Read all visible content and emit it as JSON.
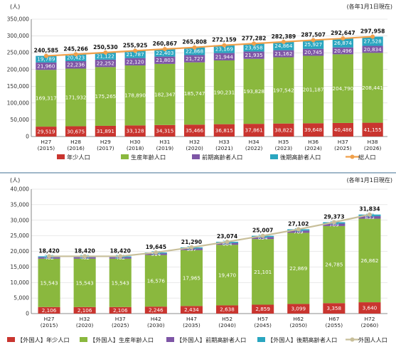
{
  "charts": [
    {
      "id": "top",
      "type": "bar",
      "stacked": true,
      "unit_label": "(人)",
      "note": "(各年1月1日現在)",
      "categories": [
        [
          "H27",
          "(2015)"
        ],
        [
          "H28",
          "(2016)"
        ],
        [
          "H29",
          "(2017)"
        ],
        [
          "H30",
          "(2018)"
        ],
        [
          "H31",
          "(2019)"
        ],
        [
          "H32",
          "(2020)"
        ],
        [
          "H33",
          "(2021)"
        ],
        [
          "H34",
          "(2022)"
        ],
        [
          "H35",
          "(2023)"
        ],
        [
          "H36",
          "(2024)"
        ],
        [
          "H37",
          "(2025)"
        ],
        [
          "H38",
          "(2026)"
        ]
      ],
      "series": [
        {
          "name": "年少人口",
          "color": "#c9352f",
          "label_color": "#ffffff",
          "values": [
            29519,
            30675,
            31891,
            33128,
            34315,
            35466,
            36815,
            37861,
            38822,
            39648,
            40486,
            41155
          ]
        },
        {
          "name": "生産年齢人口",
          "color": "#8ab83e",
          "label_color": "#ffffff",
          "values": [
            169317,
            171932,
            175265,
            178890,
            182347,
            185747,
            190231,
            193828,
            197542,
            201187,
            204790,
            208441
          ]
        },
        {
          "name": "前期高齢者人口",
          "color": "#7e56a6",
          "label_color": "#ffffff",
          "values": [
            21960,
            22236,
            22252,
            22120,
            21803,
            21727,
            21944,
            21935,
            21162,
            20745,
            20496,
            20834
          ]
        },
        {
          "name": "後期高齢者人口",
          "color": "#2aa6c0",
          "label_color": "#ffffff",
          "values": [
            19789,
            20423,
            21122,
            21787,
            22403,
            22868,
            23169,
            23658,
            24864,
            25927,
            26874,
            27528
          ]
        }
      ],
      "line": {
        "name": "総人口",
        "color": "#f0a04b",
        "values": [
          240585,
          245266,
          250530,
          255925,
          260867,
          265808,
          272159,
          277282,
          282389,
          287507,
          292647,
          297958
        ]
      },
      "ylim": [
        0,
        350000
      ],
      "yticks": [
        0,
        50000,
        100000,
        150000,
        200000,
        250000,
        300000,
        350000
      ],
      "ytick_labels": [
        "0",
        "50,000",
        "100,000",
        "150,000",
        "200,000",
        "250,000",
        "300,000",
        "350,000"
      ],
      "legend": [
        {
          "label": "年少人口",
          "color": "#c9352f",
          "kind": "box"
        },
        {
          "label": "生産年齢人口",
          "color": "#8ab83e",
          "kind": "box"
        },
        {
          "label": "前期高齢者人口",
          "color": "#7e56a6",
          "kind": "box"
        },
        {
          "label": "後期高齢者人口",
          "color": "#2aa6c0",
          "kind": "box"
        },
        {
          "label": "総人口",
          "color": "#f0a04b",
          "kind": "line"
        }
      ]
    },
    {
      "id": "bottom",
      "type": "bar",
      "stacked": true,
      "unit_label": "(人)",
      "note": "(各年1月1日現在)",
      "categories": [
        [
          "H27",
          "(2015)"
        ],
        [
          "H32",
          "(2020)"
        ],
        [
          "H37",
          "(2025)"
        ],
        [
          "H42",
          "(2030)"
        ],
        [
          "H47",
          "(2035)"
        ],
        [
          "H52",
          "(2040)"
        ],
        [
          "H57",
          "(2045)"
        ],
        [
          "H62",
          "(2050)"
        ],
        [
          "H67",
          "(2055)"
        ],
        [
          "H72",
          "(2060)"
        ]
      ],
      "series": [
        {
          "name": "【外国人】年少人口",
          "color": "#c9352f",
          "label_color": "#ffffff",
          "values": [
            2106,
            2106,
            2106,
            2246,
            2434,
            2638,
            2859,
            3099,
            3358,
            3640
          ]
        },
        {
          "name": "【外国人】生産年齢人口",
          "color": "#8ab83e",
          "label_color": "#ffffff",
          "values": [
            15543,
            15543,
            15543,
            16576,
            17965,
            19470,
            21101,
            22869,
            24785,
            26862
          ]
        },
        {
          "name": "【外国人】前期高齢者人口",
          "color": "#7e56a6",
          "label_color": "#ffffff",
          "values": [
            482,
            482,
            482,
            514,
            557,
            604,
            654,
            709,
            769,
            833
          ]
        },
        {
          "name": "【外国人】後期高齢者人口",
          "color": "#2aa6c0",
          "label_color": "#2aa6c0",
          "values": [
            289,
            289,
            289,
            308,
            334,
            362,
            392,
            425,
            461,
            499
          ]
        }
      ],
      "line": {
        "name": "外国人人口",
        "color": "#c8bf9a",
        "values": [
          18420,
          18420,
          18420,
          19645,
          21290,
          23074,
          25007,
          27102,
          29373,
          31834
        ]
      },
      "ylim": [
        0,
        40000
      ],
      "yticks": [
        0,
        5000,
        10000,
        15000,
        20000,
        25000,
        30000,
        35000,
        40000
      ],
      "ytick_labels": [
        "0",
        "5,000",
        "10,000",
        "15,000",
        "20,000",
        "25,000",
        "30,000",
        "35,000",
        "40,000"
      ],
      "legend": [
        {
          "label": "【外国人】年少人口",
          "color": "#c9352f",
          "kind": "box"
        },
        {
          "label": "【外国人】生産年齢人口",
          "color": "#8ab83e",
          "kind": "box"
        },
        {
          "label": "【外国人】前期高齢者人口",
          "color": "#7e56a6",
          "kind": "box"
        },
        {
          "label": "【外国人】後期高齢者人口",
          "color": "#2aa6c0",
          "kind": "box"
        },
        {
          "label": "外国人人口",
          "color": "#c8bf9a",
          "kind": "line"
        }
      ]
    }
  ]
}
